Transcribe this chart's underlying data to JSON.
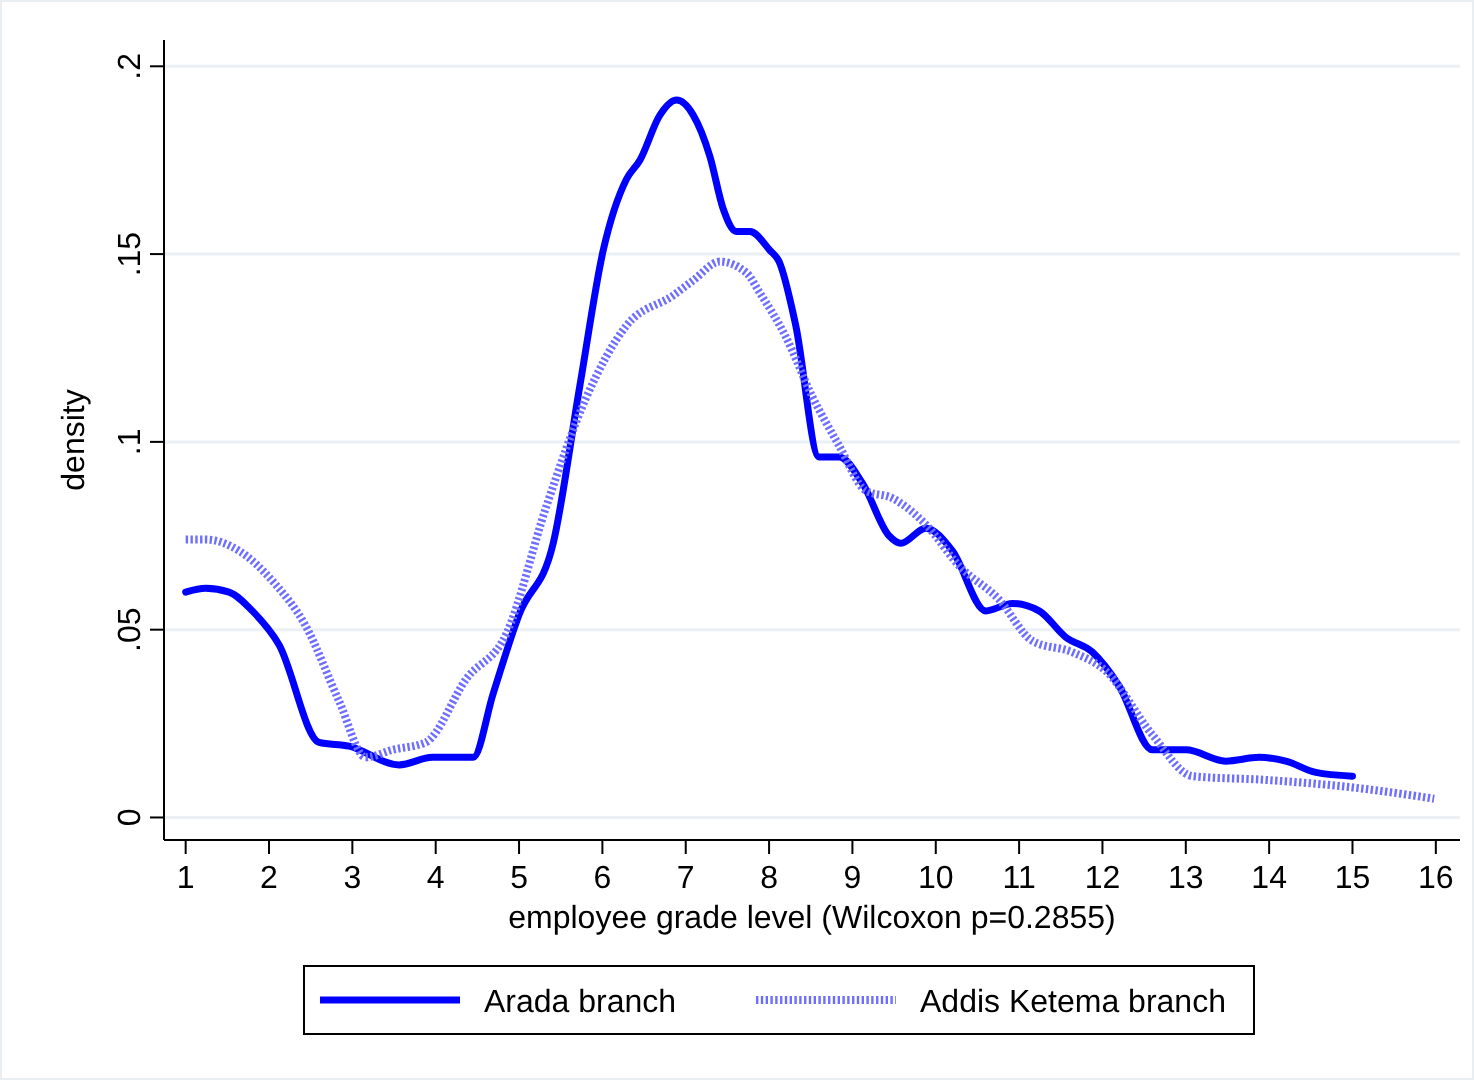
{
  "chart_data": {
    "type": "line",
    "xlabel": "employee grade level (Wilcoxon p=0.2855)",
    "ylabel": "density",
    "xlim": [
      0.74,
      16.29
    ],
    "xticks": [
      1,
      2,
      3,
      4,
      5,
      6,
      7,
      8,
      9,
      10,
      11,
      12,
      13,
      14,
      15,
      16
    ],
    "ylim": [
      -0.006,
      0.207
    ],
    "yticks": [
      {
        "value": 0,
        "label": "0"
      },
      {
        "value": 0.05,
        "label": ".05"
      },
      {
        "value": 0.1,
        "label": ".1"
      },
      {
        "value": 0.15,
        "label": ".15"
      },
      {
        "value": 0.2,
        "label": ".2"
      }
    ],
    "grid": "y",
    "legend": "bottom",
    "marker": "none",
    "series": [
      {
        "name": "Arada branch",
        "color": "#0000ff",
        "line_style": "solid",
        "x": [
          1,
          1.24,
          1.52,
          1.8,
          2.12,
          2.6,
          2.96,
          3.56,
          3.96,
          4.45,
          4.69,
          5.0,
          5.41,
          5.73,
          6.01,
          6.29,
          6.45,
          6.69,
          6.89,
          7.09,
          7.29,
          7.45,
          7.61,
          7.77,
          8.01,
          8.12,
          8.32,
          8.6,
          8.84,
          9.12,
          9.44,
          9.58,
          9.88,
          10.2,
          10.6,
          10.92,
          11.24,
          11.56,
          11.88,
          12.2,
          12.6,
          13.0,
          13.48,
          13.88,
          14.2,
          14.56,
          15.0
        ],
        "values": [
          0.06,
          0.061,
          0.06,
          0.055,
          0.046,
          0.02,
          0.019,
          0.014,
          0.016,
          0.016,
          0.033,
          0.054,
          0.073,
          0.115,
          0.151,
          0.17,
          0.175,
          0.187,
          0.191,
          0.187,
          0.176,
          0.162,
          0.156,
          0.156,
          0.151,
          0.148,
          0.131,
          0.096,
          0.096,
          0.089,
          0.075,
          0.073,
          0.077,
          0.071,
          0.055,
          0.057,
          0.055,
          0.048,
          0.044,
          0.035,
          0.018,
          0.018,
          0.015,
          0.016,
          0.015,
          0.012,
          0.011
        ]
      },
      {
        "name": "Addis Ketema branch",
        "color": "#6f6fff",
        "line_style": "dotted",
        "x": [
          1,
          1.24,
          1.64,
          2.04,
          2.44,
          2.84,
          3.16,
          3.48,
          3.88,
          4.37,
          4.85,
          5.33,
          5.81,
          6.29,
          6.85,
          7.09,
          7.41,
          7.73,
          7.88,
          8.2,
          8.52,
          8.84,
          9.16,
          9.48,
          9.88,
          10.28,
          10.76,
          11.16,
          11.64,
          12.04,
          12.6,
          13.08,
          13.96,
          15.0,
          15.98
        ],
        "values": [
          0.074,
          0.074,
          0.071,
          0.063,
          0.051,
          0.031,
          0.016,
          0.018,
          0.02,
          0.037,
          0.049,
          0.083,
          0.112,
          0.131,
          0.139,
          0.143,
          0.148,
          0.145,
          0.14,
          0.128,
          0.112,
          0.099,
          0.087,
          0.085,
          0.078,
          0.067,
          0.058,
          0.047,
          0.044,
          0.039,
          0.022,
          0.011,
          0.01,
          0.008,
          0.005
        ]
      }
    ]
  }
}
